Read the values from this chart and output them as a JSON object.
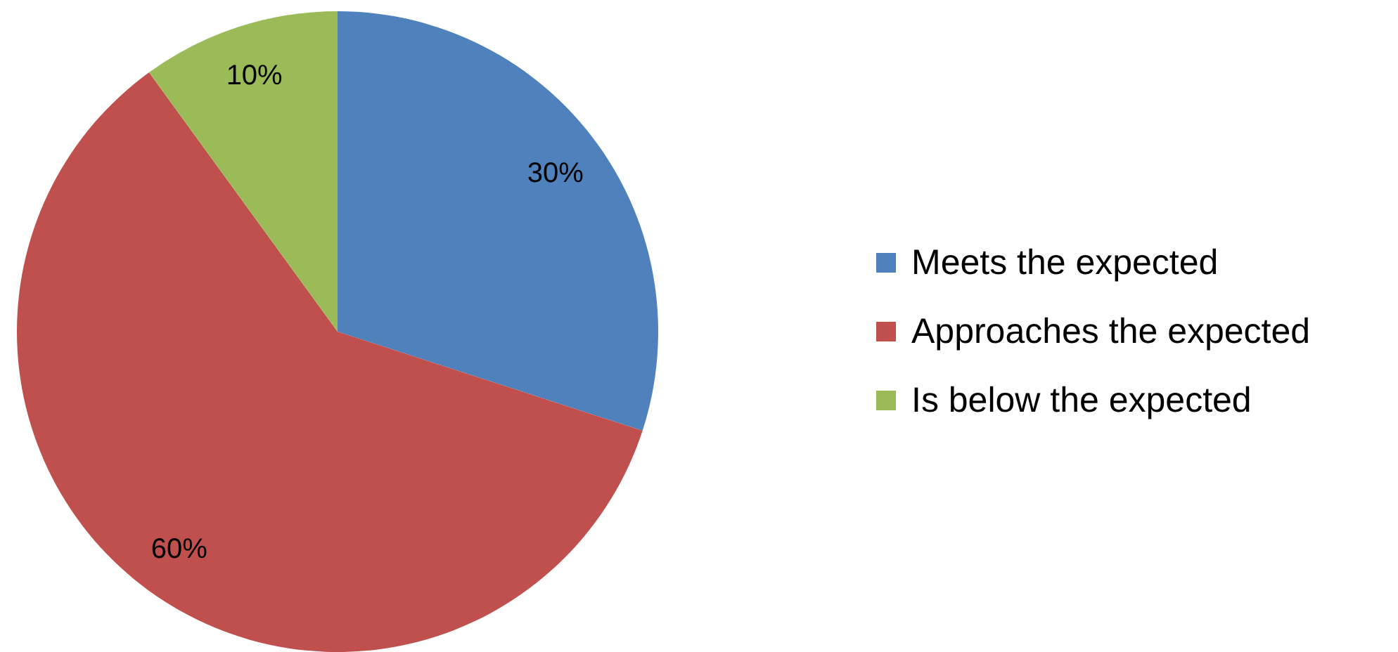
{
  "chart_data": {
    "type": "pie",
    "categories": [
      "Meets the expected",
      "Approaches the expected",
      "Is below the expected"
    ],
    "values": [
      30,
      60,
      10
    ],
    "colors": [
      "#4f81bd",
      "#c0504d",
      "#9bbb59"
    ],
    "value_labels": [
      "30%",
      "60%",
      "10%"
    ],
    "legend": "right"
  }
}
